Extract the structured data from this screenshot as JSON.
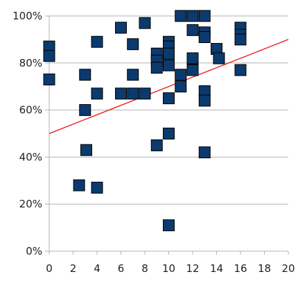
{
  "chart_data": {
    "type": "scatter",
    "title": "",
    "xlabel": "",
    "ylabel": "",
    "xlim": [
      0,
      20
    ],
    "ylim": [
      0,
      100
    ],
    "x_ticks": [
      0,
      2,
      4,
      6,
      8,
      10,
      12,
      14,
      16,
      18,
      20
    ],
    "y_ticks": [
      0,
      20,
      40,
      60,
      80,
      100
    ],
    "y_tick_labels": [
      "0%",
      "20%",
      "40%",
      "60%",
      "80%",
      "100%"
    ],
    "grid": {
      "horizontal": true,
      "vertical": false
    },
    "legend": "none",
    "series": [
      {
        "marker": "square",
        "color": "#0b3a6e",
        "edge_color": "#000000",
        "points": [
          {
            "x": 0,
            "y": 87
          },
          {
            "x": 0,
            "y": 83
          },
          {
            "x": 0,
            "y": 73
          },
          {
            "x": 2.5,
            "y": 28
          },
          {
            "x": 3,
            "y": 75
          },
          {
            "x": 3,
            "y": 60
          },
          {
            "x": 3.1,
            "y": 43
          },
          {
            "x": 4,
            "y": 89
          },
          {
            "x": 4,
            "y": 67
          },
          {
            "x": 4,
            "y": 27
          },
          {
            "x": 6,
            "y": 95
          },
          {
            "x": 6,
            "y": 67
          },
          {
            "x": 7,
            "y": 88
          },
          {
            "x": 7,
            "y": 75
          },
          {
            "x": 7,
            "y": 67
          },
          {
            "x": 8,
            "y": 97
          },
          {
            "x": 8,
            "y": 67
          },
          {
            "x": 9,
            "y": 84
          },
          {
            "x": 9,
            "y": 81
          },
          {
            "x": 9,
            "y": 78
          },
          {
            "x": 9,
            "y": 45
          },
          {
            "x": 10,
            "y": 89
          },
          {
            "x": 10,
            "y": 87
          },
          {
            "x": 10,
            "y": 84
          },
          {
            "x": 10,
            "y": 79
          },
          {
            "x": 10,
            "y": 65
          },
          {
            "x": 10,
            "y": 50
          },
          {
            "x": 10,
            "y": 11
          },
          {
            "x": 11,
            "y": 100
          },
          {
            "x": 11,
            "y": 75
          },
          {
            "x": 11,
            "y": 70
          },
          {
            "x": 12,
            "y": 100
          },
          {
            "x": 12,
            "y": 94
          },
          {
            "x": 12,
            "y": 82
          },
          {
            "x": 12,
            "y": 77
          },
          {
            "x": 13,
            "y": 100
          },
          {
            "x": 13,
            "y": 93
          },
          {
            "x": 13,
            "y": 91
          },
          {
            "x": 13,
            "y": 68
          },
          {
            "x": 13,
            "y": 64
          },
          {
            "x": 13,
            "y": 42
          },
          {
            "x": 14,
            "y": 86
          },
          {
            "x": 14.2,
            "y": 82
          },
          {
            "x": 16,
            "y": 95
          },
          {
            "x": 16,
            "y": 92
          },
          {
            "x": 16,
            "y": 90
          },
          {
            "x": 16,
            "y": 77
          }
        ]
      }
    ],
    "trendline": {
      "type": "linear",
      "color": "#ee1111",
      "from": {
        "x": 0,
        "y": 50
      },
      "to": {
        "x": 20,
        "y": 90
      }
    }
  }
}
